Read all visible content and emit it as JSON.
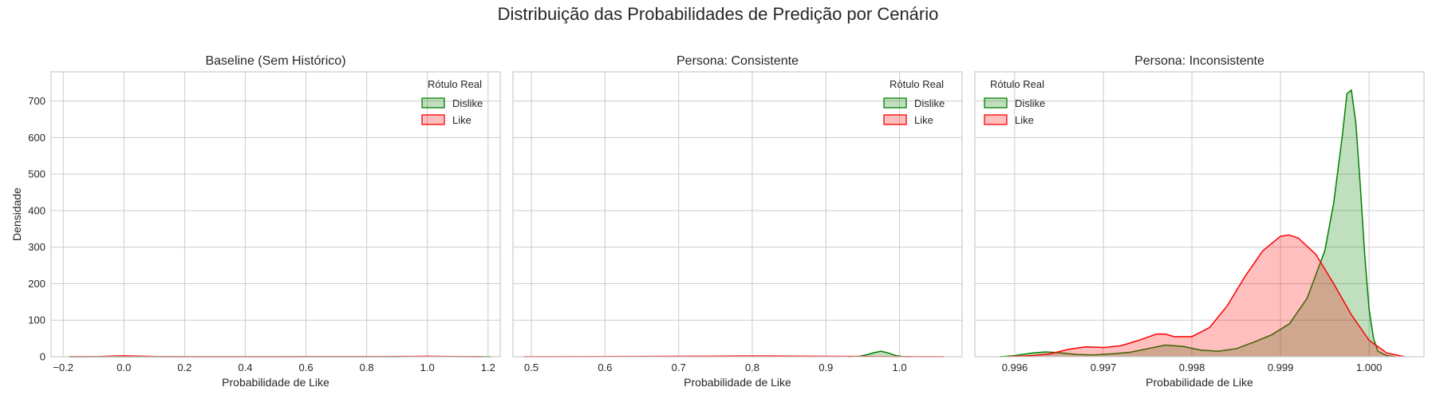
{
  "chart_data": {
    "title": "Distribuição das Probabilidades de Predição por Cenário",
    "ylabel": "Densidade",
    "sharey": true,
    "ylim": [
      0,
      780
    ],
    "yticks": [
      0,
      100,
      200,
      300,
      400,
      500,
      600,
      700
    ],
    "grid": true,
    "legend_title": "Rótulo Real",
    "series_styles": [
      {
        "name": "Dislike",
        "color": "#008000"
      },
      {
        "name": "Like",
        "color": "#ff0000"
      }
    ],
    "panels": [
      {
        "type": "area",
        "title": "Baseline (Sem Histórico)",
        "xlabel": "Probabilidade de Like",
        "xlim": [
          -0.24,
          1.24
        ],
        "xticks": [
          -0.2,
          0.0,
          0.2,
          0.4,
          0.6,
          0.8,
          1.0,
          1.2
        ],
        "xtick_labels": [
          "−0.2",
          "0.0",
          "0.2",
          "0.4",
          "0.6",
          "0.8",
          "1.0",
          "1.2"
        ],
        "legend_position": "top-right",
        "series": [
          {
            "name": "Dislike",
            "points": [
              [
                -0.18,
                0
              ],
              [
                0.9,
                0
              ],
              [
                1.0,
                0.6
              ],
              [
                1.1,
                0.2
              ],
              [
                1.21,
                0
              ]
            ]
          },
          {
            "name": "Like",
            "points": [
              [
                -0.18,
                0
              ],
              [
                -0.1,
                0.4
              ],
              [
                -0.04,
                1.5
              ],
              [
                0.0,
                2.5
              ],
              [
                0.05,
                1.5
              ],
              [
                0.12,
                0.4
              ],
              [
                0.25,
                0.1
              ],
              [
                0.5,
                0.1
              ],
              [
                0.8,
                0.3
              ],
              [
                0.95,
                0.9
              ],
              [
                1.0,
                1.4
              ],
              [
                1.05,
                0.9
              ],
              [
                1.12,
                0.2
              ],
              [
                1.18,
                0
              ]
            ]
          }
        ]
      },
      {
        "type": "area",
        "title": "Persona: Consistente",
        "xlabel": "Probabilidade de Like",
        "xlim": [
          0.475,
          1.085
        ],
        "xticks": [
          0.5,
          0.6,
          0.7,
          0.8,
          0.9,
          1.0
        ],
        "xtick_labels": [
          "0.5",
          "0.6",
          "0.7",
          "0.8",
          "0.9",
          "1.0"
        ],
        "legend_position": "top-right",
        "series": [
          {
            "name": "Dislike",
            "points": [
              [
                0.93,
                0
              ],
              [
                0.945,
                1
              ],
              [
                0.955,
                5
              ],
              [
                0.965,
                11
              ],
              [
                0.975,
                15
              ],
              [
                0.985,
                10
              ],
              [
                0.995,
                3
              ],
              [
                1.005,
                0.5
              ],
              [
                1.015,
                0
              ]
            ]
          },
          {
            "name": "Like",
            "points": [
              [
                0.49,
                0
              ],
              [
                0.55,
                0.3
              ],
              [
                0.65,
                0.9
              ],
              [
                0.72,
                1.3
              ],
              [
                0.78,
                1.8
              ],
              [
                0.82,
                2.0
              ],
              [
                0.88,
                1.4
              ],
              [
                0.94,
                0.8
              ],
              [
                1.0,
                0.4
              ],
              [
                1.06,
                0
              ]
            ]
          }
        ]
      },
      {
        "type": "area",
        "title": "Persona: Inconsistente",
        "xlabel": "Probabilidade de Like",
        "xlim": [
          0.99555,
          1.00062
        ],
        "xticks": [
          0.996,
          0.997,
          0.998,
          0.999,
          1.0
        ],
        "xtick_labels": [
          "0.996",
          "0.997",
          "0.998",
          "0.999",
          "1.000"
        ],
        "legend_position": "top-left",
        "series": [
          {
            "name": "Dislike",
            "points": [
              [
                0.99583,
                0
              ],
              [
                0.996,
                3
              ],
              [
                0.9962,
                10
              ],
              [
                0.99635,
                13
              ],
              [
                0.9965,
                11
              ],
              [
                0.9967,
                6
              ],
              [
                0.9969,
                5
              ],
              [
                0.9971,
                8
              ],
              [
                0.9973,
                12
              ],
              [
                0.9975,
                22
              ],
              [
                0.9977,
                32
              ],
              [
                0.9979,
                28
              ],
              [
                0.9981,
                18
              ],
              [
                0.9983,
                15
              ],
              [
                0.9985,
                22
              ],
              [
                0.9987,
                40
              ],
              [
                0.9989,
                60
              ],
              [
                0.9991,
                90
              ],
              [
                0.9993,
                160
              ],
              [
                0.9995,
                290
              ],
              [
                0.9996,
                420
              ],
              [
                0.9997,
                610
              ],
              [
                0.99975,
                720
              ],
              [
                0.9998,
                730
              ],
              [
                0.99985,
                640
              ],
              [
                0.9999,
                470
              ],
              [
                0.99995,
                280
              ],
              [
                1.0,
                130
              ],
              [
                1.00005,
                50
              ],
              [
                1.0001,
                15
              ],
              [
                1.0002,
                3
              ],
              [
                1.0003,
                0
              ]
            ]
          },
          {
            "name": "Like",
            "points": [
              [
                0.99592,
                0
              ],
              [
                0.9962,
                3
              ],
              [
                0.9964,
                8
              ],
              [
                0.9966,
                20
              ],
              [
                0.9968,
                27
              ],
              [
                0.997,
                25
              ],
              [
                0.9972,
                30
              ],
              [
                0.9974,
                45
              ],
              [
                0.9976,
                62
              ],
              [
                0.9977,
                62
              ],
              [
                0.9978,
                55
              ],
              [
                0.998,
                55
              ],
              [
                0.9982,
                80
              ],
              [
                0.9984,
                140
              ],
              [
                0.9986,
                220
              ],
              [
                0.9988,
                290
              ],
              [
                0.999,
                330
              ],
              [
                0.9991,
                333
              ],
              [
                0.9992,
                325
              ],
              [
                0.9994,
                280
              ],
              [
                0.9996,
                200
              ],
              [
                0.9998,
                115
              ],
              [
                1.0,
                45
              ],
              [
                1.0002,
                10
              ],
              [
                1.0004,
                0
              ]
            ]
          }
        ]
      }
    ]
  }
}
